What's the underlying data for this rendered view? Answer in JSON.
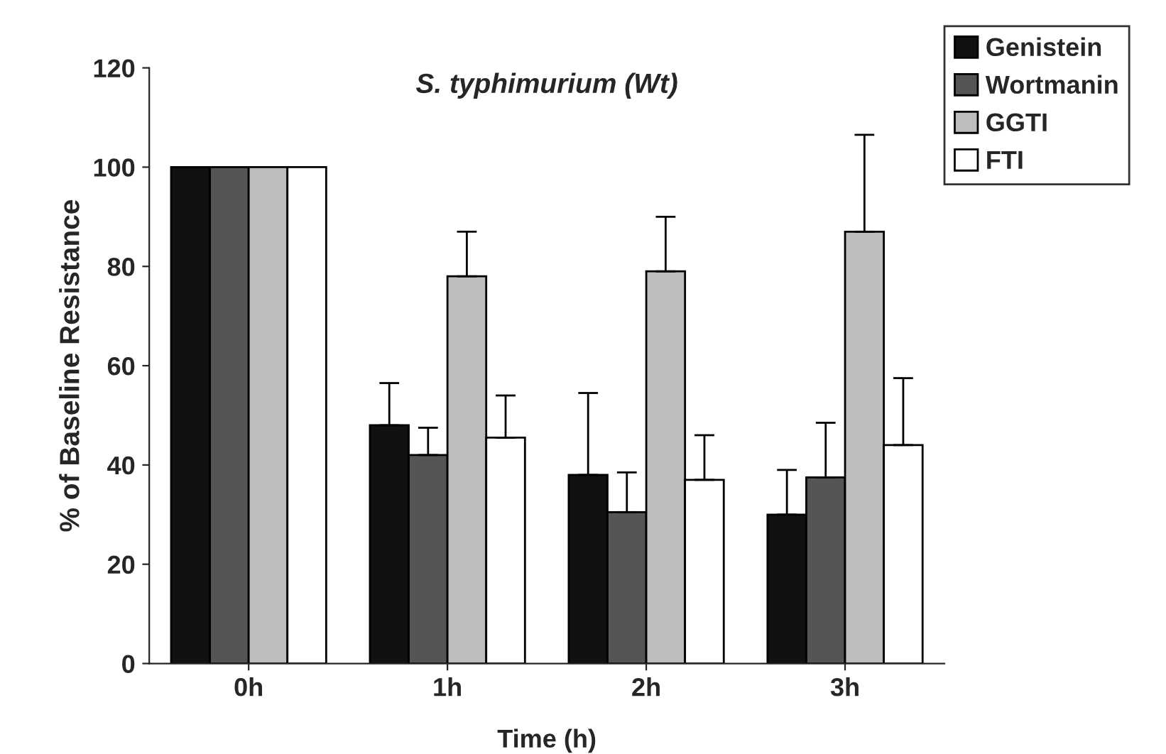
{
  "chart_data": {
    "type": "bar",
    "title": "S. typhimurium (Wt)",
    "xlabel": "Time (h)",
    "ylabel": "% of Baseline Resistance",
    "categories": [
      "0h",
      "1h",
      "2h",
      "3h"
    ],
    "series": [
      {
        "name": "Genistein",
        "color": "#111111",
        "values": [
          100,
          48,
          38,
          30
        ],
        "errors": [
          null,
          [
            48,
            56.5
          ],
          [
            38,
            54.5
          ],
          [
            30,
            39
          ]
        ]
      },
      {
        "name": "Wortmanin",
        "color": "#555555",
        "values": [
          100,
          42,
          30.5,
          37.5
        ],
        "errors": [
          null,
          [
            42,
            47.5
          ],
          [
            30.5,
            38.5
          ],
          [
            37.5,
            48.5
          ]
        ]
      },
      {
        "name": "GGTI",
        "color": "#bdbdbd",
        "values": [
          100,
          78,
          79,
          87
        ],
        "errors": [
          null,
          [
            78,
            87
          ],
          [
            79,
            90
          ],
          [
            87,
            106.5
          ]
        ]
      },
      {
        "name": "FTI",
        "color": "#ffffff",
        "values": [
          100,
          45.5,
          37,
          44
        ],
        "errors": [
          null,
          [
            45.5,
            54
          ],
          [
            37,
            46
          ],
          [
            44,
            57.5
          ]
        ]
      }
    ],
    "ylim": [
      0,
      120
    ],
    "yticks": [
      0,
      20,
      40,
      60,
      80,
      100,
      120
    ],
    "grid": false,
    "legend": "top right"
  }
}
